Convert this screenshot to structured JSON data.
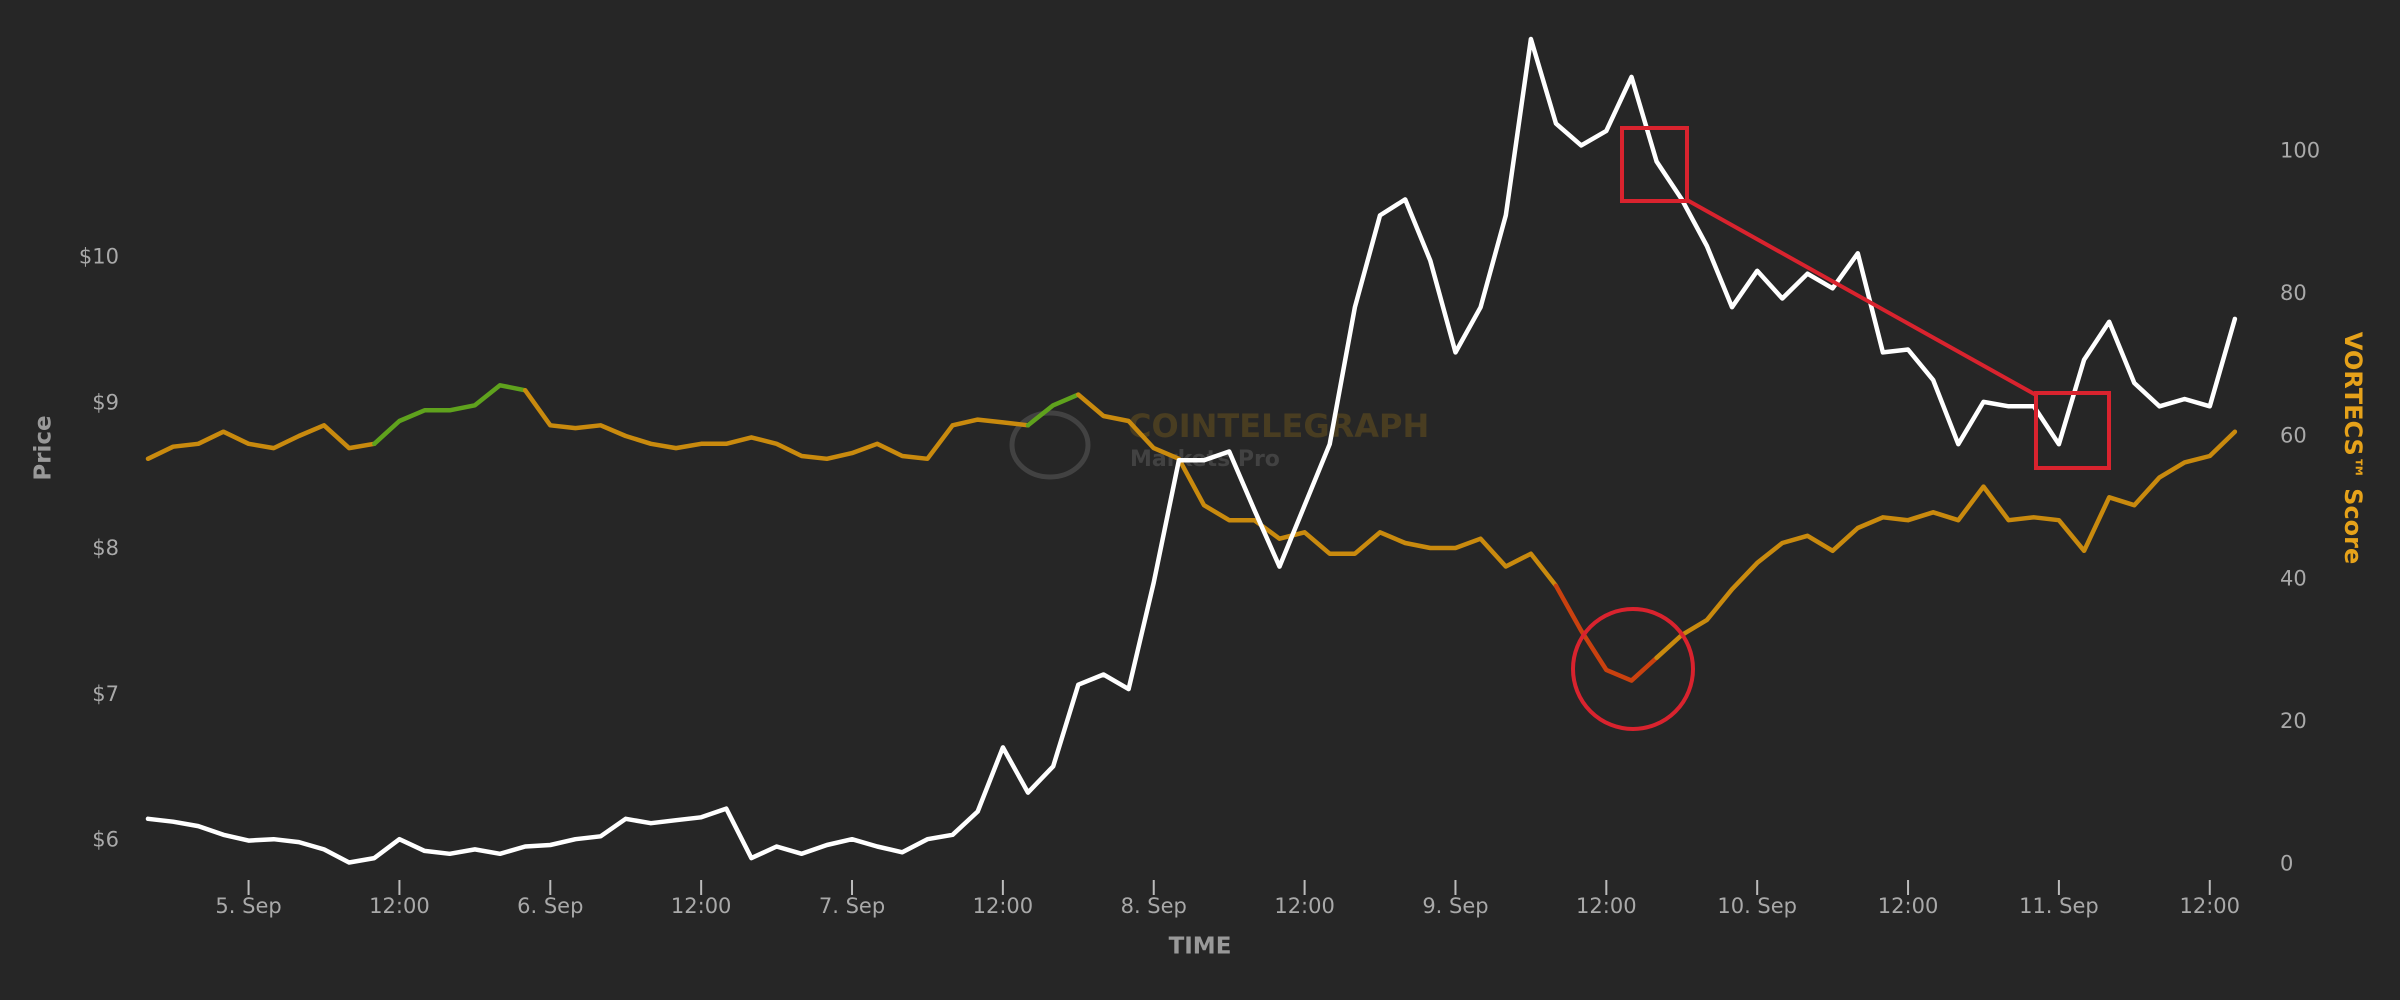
{
  "chart_data": {
    "type": "line",
    "xlabel": "TIME",
    "watermark": {
      "title": "COINTELEGRAPH",
      "subtitle": "Markets Pro"
    },
    "xlim": [
      -8,
      159.2
    ],
    "xticks": [
      {
        "value": 0,
        "label": "5. Sep"
      },
      {
        "value": 12,
        "label": "12:00"
      },
      {
        "value": 24,
        "label": "6. Sep"
      },
      {
        "value": 36,
        "label": "12:00"
      },
      {
        "value": 48,
        "label": "7. Sep"
      },
      {
        "value": 60,
        "label": "12:00"
      },
      {
        "value": 72,
        "label": "8. Sep"
      },
      {
        "value": 84,
        "label": "12:00"
      },
      {
        "value": 96,
        "label": "9. Sep"
      },
      {
        "value": 108,
        "label": "12:00"
      },
      {
        "value": 120,
        "label": "10. Sep"
      },
      {
        "value": 132,
        "label": "12:00"
      },
      {
        "value": 144,
        "label": "11. Sep"
      },
      {
        "value": 156,
        "label": "12:00"
      }
    ],
    "ylim": [
      5.73,
      11.61
    ],
    "yticks": [
      {
        "value": 6,
        "label": "$6"
      },
      {
        "value": 7,
        "label": "$7"
      },
      {
        "value": 8,
        "label": "$8"
      },
      {
        "value": 9,
        "label": "$9"
      },
      {
        "value": 10,
        "label": "$10"
      }
    ],
    "y2lim": [
      -2.15,
      118
    ],
    "y2ticks": [
      0,
      20,
      40,
      60,
      80,
      100
    ],
    "x": [
      -8,
      -6,
      -4,
      -2,
      0,
      2,
      4,
      6,
      8,
      10,
      12,
      14,
      16,
      18,
      20,
      22,
      24,
      26,
      28,
      30,
      32,
      34,
      36,
      38,
      40,
      42,
      44,
      46,
      48,
      50,
      52,
      54,
      56,
      58,
      60,
      62,
      64,
      66,
      68,
      70,
      72,
      74,
      76,
      78,
      80,
      82,
      84,
      86,
      88,
      90,
      92,
      94,
      96,
      98,
      100,
      102,
      104,
      106,
      108,
      110,
      112,
      114,
      116,
      118,
      120,
      122,
      124,
      126,
      128,
      130,
      132,
      134,
      136,
      138,
      140,
      142,
      144,
      146,
      148,
      150,
      152,
      154,
      156,
      158
    ],
    "series": [
      {
        "name": "Price",
        "color": "#ffffff",
        "axis": "y",
        "values": [
          6.15,
          6.13,
          6.1,
          6.04,
          6.0,
          6.01,
          5.99,
          5.94,
          5.85,
          5.88,
          6.01,
          5.93,
          5.91,
          5.94,
          5.91,
          5.96,
          5.97,
          6.01,
          6.03,
          6.15,
          6.12,
          6.14,
          6.16,
          6.22,
          5.88,
          5.96,
          5.91,
          5.97,
          6.01,
          5.96,
          5.92,
          6.01,
          6.04,
          6.2,
          6.64,
          6.33,
          6.51,
          7.07,
          7.14,
          7.04,
          7.77,
          8.61,
          8.61,
          8.67,
          8.27,
          7.88,
          8.3,
          8.72,
          9.66,
          10.29,
          10.4,
          9.98,
          9.35,
          9.66,
          10.29,
          11.5,
          10.92,
          10.77,
          10.87,
          11.24,
          10.66,
          10.4,
          10.08,
          9.66,
          9.91,
          9.72,
          9.89,
          9.79,
          10.03,
          9.35,
          9.37,
          9.16,
          8.72,
          9.01,
          8.98,
          8.98,
          8.72,
          9.3,
          9.56,
          9.14,
          8.98,
          9.03,
          8.98,
          9.58
        ]
      },
      {
        "name": "VORTECS™ Score",
        "color": "#c98a0e",
        "title_color": "#e6a21a",
        "axis": "y2",
        "values": [
          56.9,
          58.6,
          59.0,
          60.7,
          59.0,
          58.4,
          60.1,
          61.6,
          58.4,
          59.0,
          62.2,
          63.7,
          63.7,
          64.4,
          67.2,
          66.5,
          61.6,
          61.2,
          61.6,
          60.1,
          59.0,
          58.4,
          59.0,
          59.0,
          59.9,
          59.0,
          57.3,
          56.9,
          57.7,
          59.0,
          57.3,
          56.9,
          61.6,
          62.4,
          62.0,
          61.6,
          64.4,
          65.9,
          62.9,
          62.2,
          58.4,
          56.9,
          50.4,
          48.3,
          48.3,
          45.7,
          46.6,
          43.6,
          43.6,
          46.6,
          45.1,
          44.4,
          44.4,
          45.7,
          41.8,
          43.6,
          39.1,
          32.8,
          27.3,
          25.8,
          29.0,
          32.2,
          34.3,
          38.6,
          42.3,
          45.1,
          46.1,
          44.0,
          47.2,
          48.7,
          48.3,
          49.4,
          48.3,
          53.0,
          48.3,
          48.7,
          48.3,
          44.0,
          51.5,
          50.4,
          54.3,
          56.4,
          57.3,
          60.7
        ],
        "point_colors": [
          "#c98a0e",
          "#c98a0e",
          "#c98a0e",
          "#c98a0e",
          "#c98a0e",
          "#c98a0e",
          "#c98a0e",
          "#c98a0e",
          "#c98a0e",
          "#c98a0e",
          "#5fa21d",
          "#5fa21d",
          "#5fa21d",
          "#5fa21d",
          "#5fa21d",
          "#5fa21d",
          "#c98a0e",
          "#c98a0e",
          "#c98a0e",
          "#c98a0e",
          "#c98a0e",
          "#c98a0e",
          "#c98a0e",
          "#c98a0e",
          "#c98a0e",
          "#c98a0e",
          "#c98a0e",
          "#c98a0e",
          "#c98a0e",
          "#c98a0e",
          "#c98a0e",
          "#c98a0e",
          "#c98a0e",
          "#c98a0e",
          "#c98a0e",
          "#c98a0e",
          "#5fa21d",
          "#5fa21d",
          "#c98a0e",
          "#c98a0e",
          "#c98a0e",
          "#c98a0e",
          "#c98a0e",
          "#c98a0e",
          "#c98a0e",
          "#c98a0e",
          "#c98a0e",
          "#c98a0e",
          "#c98a0e",
          "#c98a0e",
          "#c98a0e",
          "#c98a0e",
          "#c98a0e",
          "#c98a0e",
          "#c98a0e",
          "#c98a0e",
          "#c98a0e",
          "#c9410f",
          "#c9410f",
          "#c9410f",
          "#c9410f",
          "#c98a0e",
          "#c98a0e",
          "#c98a0e",
          "#c98a0e",
          "#c98a0e",
          "#c98a0e",
          "#c98a0e",
          "#c98a0e",
          "#c98a0e",
          "#c98a0e",
          "#c98a0e",
          "#c98a0e",
          "#c98a0e",
          "#c98a0e",
          "#c98a0e",
          "#c98a0e",
          "#c98a0e",
          "#c98a0e",
          "#c98a0e",
          "#c98a0e",
          "#c98a0e",
          "#c98a0e",
          "#c98a0e"
        ]
      }
    ]
  }
}
